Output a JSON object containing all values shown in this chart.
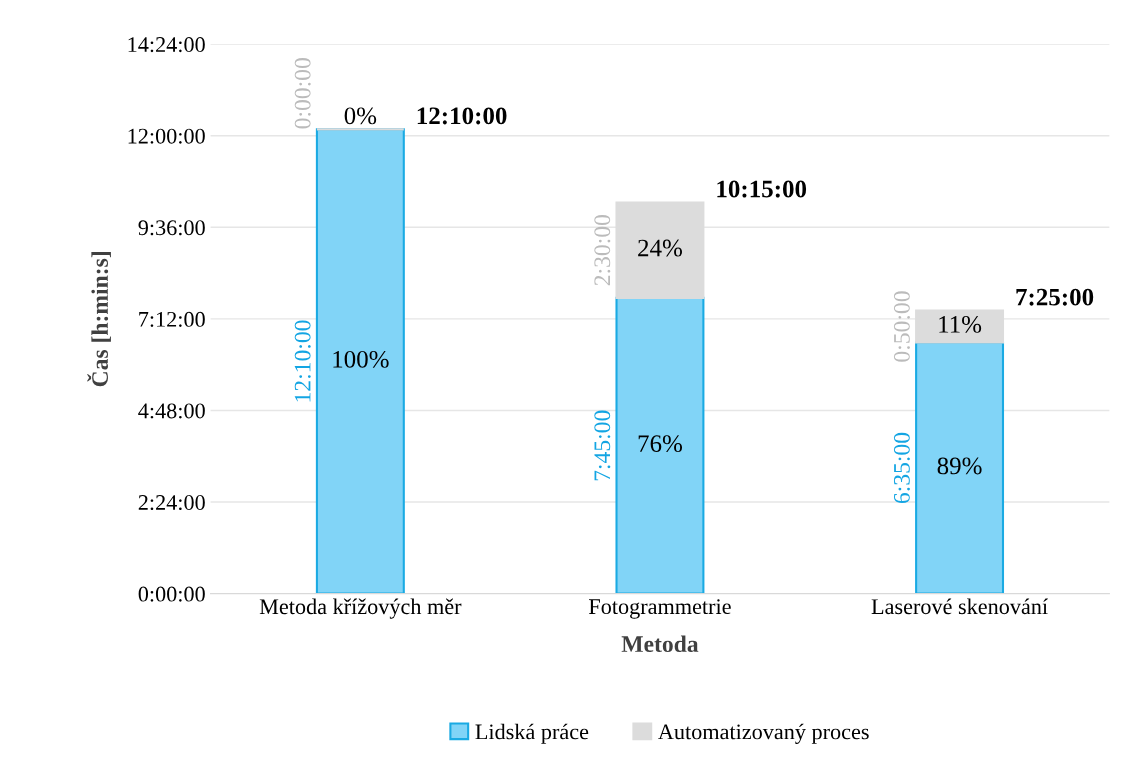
{
  "chart_data": {
    "type": "bar",
    "stacked": true,
    "xlabel": "Metoda",
    "ylabel": "Čas [h:min:s]",
    "categories": [
      "Metoda křížových měr",
      "Fotogrammetrie",
      "Laserové skenování"
    ],
    "series": [
      {
        "name": "Lidská práce",
        "color": "#81d4f7",
        "values": [
          12.1667,
          7.75,
          6.5833
        ],
        "value_labels": [
          "12:10:00",
          "7:45:00",
          "6:35:00"
        ]
      },
      {
        "name": "Automatizovaný proces",
        "color": "#dcdcdc",
        "values": [
          0,
          2.5,
          0.8333
        ],
        "value_labels": [
          "0:00:00",
          "2:30:00",
          "0:50:00"
        ]
      }
    ],
    "totals": [
      "12:10:00",
      "10:15:00",
      "7:25:00"
    ],
    "annotations": [
      "100%",
      "0%",
      "76%",
      "24%",
      "89%",
      "11%"
    ],
    "ylim": [
      0,
      14.4
    ],
    "yticks": [
      {
        "value": 0,
        "label": "0:00:00"
      },
      {
        "value": 2.4,
        "label": "2:24:00"
      },
      {
        "value": 4.8,
        "label": "4:48:00"
      },
      {
        "value": 7.2,
        "label": "7:12:00"
      },
      {
        "value": 9.6,
        "label": "9:36:00"
      },
      {
        "value": 12,
        "label": "12:00:00"
      },
      {
        "value": 14.4,
        "label": "14:24:00"
      }
    ],
    "grid": "y",
    "legend": "bottom"
  }
}
